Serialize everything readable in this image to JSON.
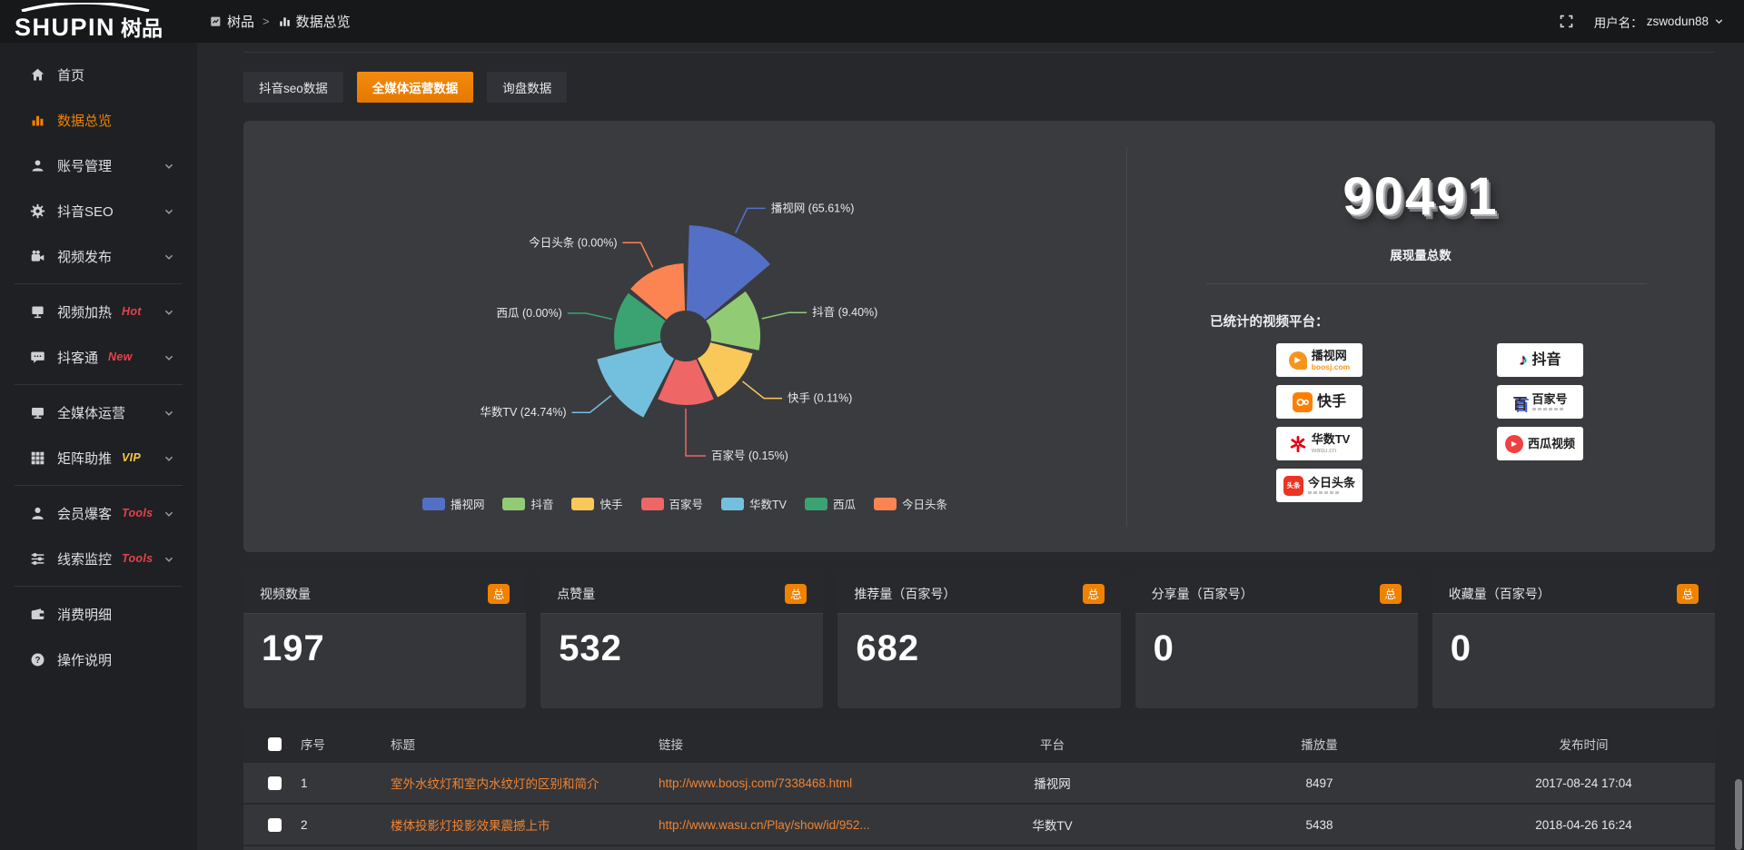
{
  "colors": {
    "accent": "#f08200",
    "hot": "#e8414b",
    "vip": "#f5c842",
    "link": "#f08431"
  },
  "topbar": {
    "logo_text": "SHUPIN",
    "logo_suffix": "树品",
    "breadcrumb": [
      {
        "label": "树品",
        "icon": "report-icon"
      },
      {
        "label": "数据总览",
        "icon": "bars-icon"
      }
    ],
    "separator": ">",
    "username_label": "用户名：",
    "username": "zswodun88"
  },
  "sidebar": {
    "items": [
      {
        "key": "home",
        "label": "首页",
        "icon": "home-icon"
      },
      {
        "key": "data-overview",
        "label": "数据总览",
        "icon": "chart-icon",
        "active": true
      },
      {
        "key": "account-management",
        "label": "账号管理",
        "icon": "user-icon",
        "expandable": true
      },
      {
        "key": "douyin-seo",
        "label": "抖音SEO",
        "icon": "gear-icon",
        "expandable": true
      },
      {
        "key": "video-publish",
        "label": "视频发布",
        "icon": "video-icon",
        "expandable": true
      },
      {
        "divider": true
      },
      {
        "key": "video-heating",
        "label": "视频加热",
        "icon": "screen-icon",
        "badge": "Hot",
        "badge_color": "#e8414b",
        "expandable": true
      },
      {
        "key": "douketong",
        "label": "抖客通",
        "icon": "chat-icon",
        "badge": "New",
        "badge_color": "#e8414b",
        "expandable": true
      },
      {
        "divider": true
      },
      {
        "key": "all-media-operation",
        "label": "全媒体运营",
        "icon": "monitor-icon",
        "expandable": true
      },
      {
        "key": "matrix-boost",
        "label": "矩阵助推",
        "icon": "grid-icon",
        "badge": "VIP",
        "badge_color": "#f5c842",
        "expandable": true
      },
      {
        "divider": true
      },
      {
        "key": "member-baoke",
        "label": "会员爆客",
        "icon": "person-icon",
        "badge": "Tools",
        "badge_color": "#e8414b",
        "expandable": true
      },
      {
        "key": "lead-monitor",
        "label": "线索监控",
        "icon": "sliders-icon",
        "badge": "Tools",
        "badge_color": "#e8414b",
        "expandable": true
      },
      {
        "divider": true
      },
      {
        "key": "consumption-detail",
        "label": "消费明细",
        "icon": "wallet-icon"
      },
      {
        "key": "operation-guide",
        "label": "操作说明",
        "icon": "help-icon"
      }
    ]
  },
  "tabs": [
    {
      "key": "douyin-seo-data",
      "label": "抖音seo数据"
    },
    {
      "key": "all-media-data",
      "label": "全媒体运营数据",
      "active": true
    },
    {
      "key": "inquiry-data",
      "label": "询盘数据"
    }
  ],
  "chart_data": {
    "type": "pie",
    "variant": "nightingale-rose",
    "title": "",
    "unit": "percent",
    "legend_position": "bottom",
    "inner_radius": 28,
    "slices": [
      {
        "key": "boosj",
        "name": "播视网",
        "pct": "65.61",
        "value": 65.61,
        "color": "#5470c6",
        "radius": 122
      },
      {
        "key": "douyin",
        "name": "抖音",
        "pct": "9.40",
        "value": 9.4,
        "color": "#91cc75",
        "radius": 82
      },
      {
        "key": "kuaishou",
        "name": "快手",
        "pct": "0.11",
        "value": 0.11,
        "color": "#fac858",
        "radius": 76
      },
      {
        "key": "baijiahao",
        "name": "百家号",
        "pct": "0.15",
        "value": 0.15,
        "color": "#ee6666",
        "radius": 76
      },
      {
        "key": "wasu",
        "name": "华数TV",
        "pct": "24.74",
        "value": 24.74,
        "color": "#73c0de",
        "radius": 101
      },
      {
        "key": "xigua",
        "name": "西瓜",
        "pct": "0.00",
        "value": 0.0,
        "color": "#3ba272",
        "radius": 79
      },
      {
        "key": "toutiao",
        "name": "今日头条",
        "pct": "0.00",
        "value": 0.0,
        "color": "#fc8452",
        "radius": 80
      }
    ]
  },
  "summary": {
    "total_value": "90491",
    "total_label": "展现量总数",
    "platforms_label": "已统计的视频平台：",
    "platform_columns": [
      [
        {
          "key": "boosj",
          "name": "播视网",
          "sub": "boosj.com",
          "logo": "boosj-logo"
        },
        {
          "key": "kuaishou",
          "name": "快手",
          "logo": "kuaishou-logo"
        },
        {
          "key": "wasu",
          "name": "华数TV",
          "sub": "wasu.cn",
          "logo": "wasu-logo"
        },
        {
          "key": "toutiao",
          "name": "今日头条",
          "logo": "toutiao-logo",
          "tagline": true
        }
      ],
      [
        {
          "key": "douyin",
          "name": "抖音",
          "logo": "douyin-logo"
        },
        {
          "key": "baijiahao",
          "name": "百家号",
          "logo": "baijiahao-logo",
          "tagline": true
        },
        {
          "key": "xigua",
          "name": "西瓜视频",
          "logo": "xigua-logo"
        }
      ]
    ]
  },
  "stat_cards": [
    {
      "key": "video-count",
      "title": "视频数量",
      "badge": "总",
      "value": "197"
    },
    {
      "key": "like-count",
      "title": "点赞量",
      "badge": "总",
      "value": "532"
    },
    {
      "key": "recommend-count",
      "title": "推荐量（百家号）",
      "badge": "总",
      "value": "682"
    },
    {
      "key": "share-count",
      "title": "分享量（百家号）",
      "badge": "总",
      "value": "0"
    },
    {
      "key": "favorite-count",
      "title": "收藏量（百家号）",
      "badge": "总",
      "value": "0"
    }
  ],
  "table": {
    "columns": [
      "序号",
      "标题",
      "链接",
      "平台",
      "播放量",
      "发布时间"
    ],
    "rows": [
      {
        "index": "1",
        "title": "室外水纹灯和室内水纹灯的区别和简介",
        "link": "http://www.boosj.com/7338468.html",
        "platform": "播视网",
        "plays": "8497",
        "published": "2017-08-24 17:04"
      },
      {
        "index": "2",
        "title": "楼体投影灯投影效果震撼上市",
        "link": "http://www.wasu.cn/Play/show/id/952...",
        "platform": "华数TV",
        "plays": "5438",
        "published": "2018-04-26 16:24"
      }
    ]
  }
}
